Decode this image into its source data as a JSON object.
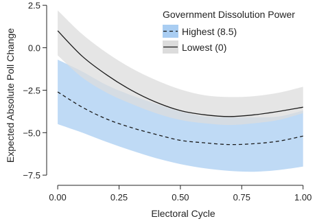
{
  "chart_data": {
    "type": "line",
    "title": "",
    "xlabel": "Electoral Cycle",
    "ylabel": "Expected Absolute Poll Change",
    "xlim": [
      -0.045,
      1.04
    ],
    "ylim": [
      -8.1,
      2.65
    ],
    "x_ticks": [
      0,
      0.25,
      0.5,
      0.75,
      1
    ],
    "x_tick_labels": [
      "0.00",
      "0.25",
      "0.50",
      "0.75",
      "1.00"
    ],
    "y_ticks": [
      -7.5,
      -5,
      -2.5,
      0,
      2.5
    ],
    "y_tick_labels": [
      "−7.5",
      "−5.0",
      "−2.5",
      "0.0",
      "2.5"
    ],
    "grid": false,
    "legend": {
      "title": "Government Dissolution Power",
      "position": "top-right"
    },
    "series": [
      {
        "name": "Highest (8.5)",
        "line_style": "dashed",
        "line_color": "#1a1a1a",
        "band_color": "#a9cdf2",
        "x": [
          0,
          0.1,
          0.2,
          0.3,
          0.4,
          0.5,
          0.6,
          0.7,
          0.8,
          0.9,
          1.0
        ],
        "values": [
          -2.6,
          -3.5,
          -4.2,
          -4.7,
          -5.1,
          -5.45,
          -5.6,
          -5.7,
          -5.65,
          -5.5,
          -5.2
        ],
        "lower": [
          -4.5,
          -5.0,
          -5.55,
          -6.05,
          -6.5,
          -6.85,
          -7.1,
          -7.25,
          -7.3,
          -7.2,
          -7.0
        ],
        "upper": [
          -0.7,
          -1.4,
          -2.2,
          -2.8,
          -3.3,
          -3.75,
          -4.05,
          -4.1,
          -4.1,
          -4.05,
          -3.7
        ]
      },
      {
        "name": "Lowest (0)",
        "line_style": "solid",
        "line_color": "#1a1a1a",
        "band_color": "#dcdcdc",
        "x": [
          0,
          0.1,
          0.2,
          0.3,
          0.4,
          0.5,
          0.6,
          0.7,
          0.8,
          0.9,
          1.0
        ],
        "values": [
          1.0,
          -0.5,
          -1.6,
          -2.5,
          -3.2,
          -3.7,
          -3.95,
          -4.05,
          -3.95,
          -3.75,
          -3.5
        ],
        "lower": [
          -0.45,
          -1.75,
          -2.65,
          -3.3,
          -3.85,
          -4.25,
          -4.45,
          -4.55,
          -4.45,
          -4.25,
          -3.85
        ],
        "upper": [
          2.2,
          0.8,
          -0.3,
          -1.2,
          -1.9,
          -2.45,
          -2.8,
          -2.9,
          -2.85,
          -2.65,
          -2.3
        ]
      }
    ]
  }
}
